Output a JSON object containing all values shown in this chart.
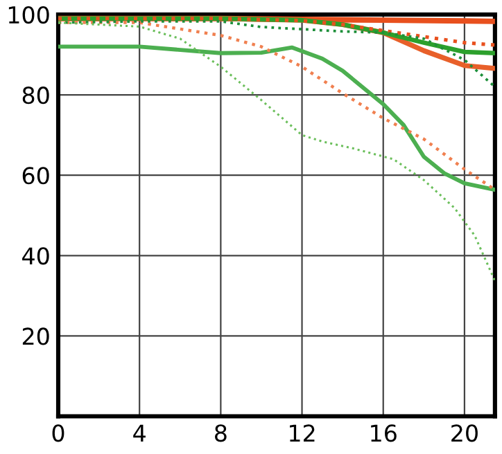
{
  "chart_data": {
    "type": "line",
    "xlim": [
      0,
      21.5
    ],
    "ylim": [
      0,
      100
    ],
    "xticks": [
      0,
      4,
      8,
      12,
      16,
      20
    ],
    "yticks": [
      20,
      40,
      60,
      80,
      100
    ],
    "grid": true,
    "legend": false,
    "marker": "none",
    "series": [
      {
        "color": "#e8501e",
        "line_style": "solid",
        "x": [
          0,
          4,
          8,
          12,
          16,
          20,
          21.5
        ],
        "values": [
          99,
          99,
          99,
          98.8,
          98.6,
          98.4,
          98.3
        ]
      },
      {
        "color": "#e8602a",
        "line_style": "solid",
        "x": [
          0,
          4,
          8,
          12,
          14,
          16,
          18,
          20,
          21.5
        ],
        "values": [
          99,
          99,
          99,
          98.6,
          97.5,
          95.5,
          91,
          87.3,
          86.6
        ]
      },
      {
        "color": "#2ca02c",
        "line_style": "solid",
        "x": [
          0,
          4,
          8,
          12,
          14,
          16,
          18,
          20,
          21.5
        ],
        "values": [
          99,
          99,
          99,
          98.6,
          97.5,
          95.5,
          93,
          90.7,
          90.4
        ]
      },
      {
        "color": "#4caf50",
        "line_style": "solid",
        "x": [
          0,
          4,
          8,
          10,
          11.5,
          13,
          14,
          16,
          17,
          18,
          19,
          20,
          21.5
        ],
        "values": [
          92,
          92,
          90.4,
          90.5,
          91.8,
          89,
          86,
          77.7,
          72.5,
          64.6,
          60.5,
          58,
          56.4
        ]
      },
      {
        "color": "#e8501e",
        "line_style": "dotted",
        "x": [
          0,
          4,
          8,
          12,
          14,
          16,
          18,
          20,
          21.5
        ],
        "values": [
          99,
          99,
          99,
          98.5,
          97.5,
          96,
          94.5,
          93,
          92.4
        ]
      },
      {
        "color": "#f08050",
        "line_style": "dotted",
        "x": [
          0,
          4,
          8,
          10,
          12,
          14,
          16,
          18,
          20,
          21.5
        ],
        "values": [
          98,
          98,
          94.8,
          92,
          87,
          80.4,
          74.2,
          69,
          61.5,
          56.4
        ]
      },
      {
        "color": "#1e8f3a",
        "line_style": "dotted",
        "x": [
          0,
          4,
          8,
          10,
          14,
          16,
          18,
          20,
          21.5
        ],
        "values": [
          98,
          98.3,
          98.3,
          96.9,
          95.8,
          95.5,
          94,
          88.7,
          82
        ]
      },
      {
        "color": "#6cbf5c",
        "line_style": "dotted",
        "x": [
          0,
          4,
          6,
          8,
          10,
          12,
          13,
          14.5,
          16.5,
          18,
          19.5,
          20.5,
          21.5
        ],
        "values": [
          98,
          97,
          94,
          87,
          78.7,
          70,
          68.4,
          66.7,
          64,
          58.8,
          51.9,
          45,
          33.7
        ]
      }
    ]
  }
}
